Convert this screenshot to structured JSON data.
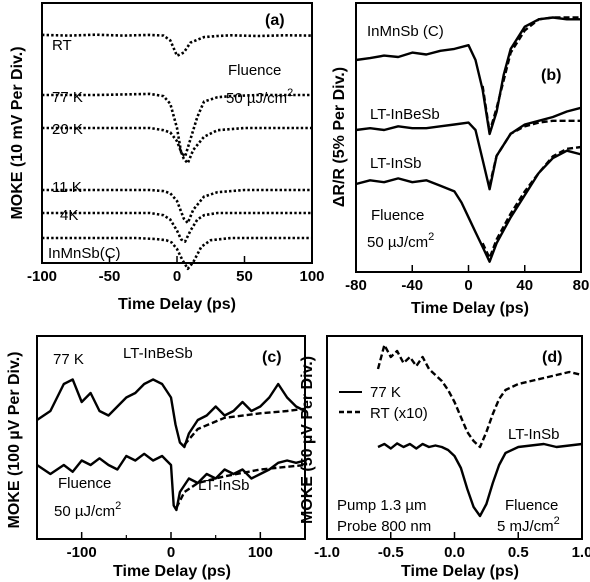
{
  "chart_data": [
    {
      "panel": "(a)",
      "type": "line",
      "xlabel": "Time Delay (ps)",
      "ylabel": "MOKE (10 mV Per Div.)",
      "xlim": [
        -100,
        100
      ],
      "xticks": [
        "-100",
        "-50",
        "0",
        "50",
        "100"
      ],
      "grid": false,
      "annotations": [
        "Fluence",
        "50 µJ/cm",
        "2"
      ],
      "series": [
        {
          "name": "RT",
          "style": "dotted",
          "x": [
            -100,
            -80,
            -60,
            -40,
            -20,
            -10,
            -5,
            0,
            5,
            10,
            20,
            30,
            40,
            60,
            80,
            100
          ],
          "y": [
            0.05,
            0.02,
            0.06,
            0.02,
            0.05,
            0.02,
            -0.2,
            -0.9,
            -0.75,
            -0.3,
            -0.05,
            0.0,
            0.03,
            0.0,
            0.03,
            0.02
          ]
        },
        {
          "name": "77 K",
          "style": "dotted",
          "x": [
            -100,
            -60,
            -20,
            -10,
            -5,
            0,
            3,
            6,
            10,
            15,
            20,
            30,
            40,
            60,
            100
          ],
          "y": [
            0.0,
            0.0,
            0.05,
            -0.05,
            -0.4,
            -1.5,
            -2.6,
            -2.8,
            -2.0,
            -1.0,
            -0.3,
            -0.1,
            -0.05,
            0.0,
            0.0
          ]
        },
        {
          "name": "20 K",
          "style": "dotted",
          "x": [
            -100,
            -60,
            -20,
            -10,
            -5,
            0,
            5,
            8,
            12,
            20,
            30,
            50,
            100
          ],
          "y": [
            0.0,
            0.0,
            0.0,
            -0.1,
            -0.2,
            -0.6,
            -1.4,
            -1.6,
            -1.0,
            -0.4,
            -0.1,
            0.0,
            0.0
          ]
        },
        {
          "name": "11 K",
          "style": "dotted",
          "x": [
            -100,
            -60,
            -20,
            -10,
            -5,
            0,
            5,
            8,
            12,
            20,
            30,
            50,
            100
          ],
          "y": [
            0.0,
            0.0,
            0.0,
            -0.05,
            -0.15,
            -0.5,
            -1.3,
            -1.5,
            -0.9,
            -0.3,
            -0.1,
            0.0,
            0.0
          ]
        },
        {
          "name": "4K",
          "style": "dotted",
          "x": [
            -100,
            -60,
            -20,
            -10,
            -5,
            0,
            3,
            6,
            10,
            15,
            20,
            30,
            50,
            100
          ],
          "y": [
            0.0,
            0.0,
            0.0,
            -0.1,
            -0.3,
            -0.8,
            -1.2,
            -1.3,
            -0.8,
            -0.3,
            -0.1,
            0.0,
            0.0,
            0.0
          ]
        },
        {
          "name": "InMnSb(C)",
          "style": "dotted",
          "x": [
            -100,
            -60,
            -30,
            -15,
            -8,
            -4,
            0,
            4,
            8,
            12,
            18,
            25,
            40,
            60,
            100
          ],
          "y": [
            0.0,
            0.0,
            0.0,
            -0.05,
            -0.1,
            -0.2,
            -0.5,
            -1.0,
            -1.4,
            -1.1,
            -0.4,
            -0.1,
            0.0,
            0.0,
            0.0
          ]
        }
      ]
    },
    {
      "panel": "(b)",
      "type": "line",
      "xlabel": "Time Delay (ps)",
      "ylabel": "ΔR/R (5% Per Div.)",
      "xlim": [
        -80,
        80
      ],
      "xticks": [
        "-80",
        "-40",
        "0",
        "40",
        "80"
      ],
      "grid": false,
      "annotations": [
        "Fluence",
        "50 µJ/cm",
        "2"
      ],
      "series": [
        {
          "name": "InMnSb (C)",
          "style": "solid",
          "x": [
            -80,
            -70,
            -60,
            -50,
            -40,
            -30,
            -20,
            -10,
            0,
            5,
            10,
            15,
            20,
            25,
            30,
            40,
            50,
            60,
            70,
            80
          ],
          "y": [
            0.0,
            0.05,
            0.12,
            0.08,
            0.2,
            0.15,
            0.25,
            0.3,
            0.4,
            0.0,
            -0.8,
            -2.0,
            -1.4,
            -0.4,
            0.3,
            0.9,
            1.1,
            1.15,
            1.1,
            1.1
          ]
        },
        {
          "name": "InMnSb (C) fit",
          "style": "dashed",
          "x": [
            10,
            15,
            20,
            30,
            40,
            50,
            60,
            70,
            80
          ],
          "y": [
            -0.7,
            -1.95,
            -1.3,
            0.2,
            0.8,
            1.1,
            1.15,
            1.15,
            1.15
          ]
        },
        {
          "name": "LT-InBeSb",
          "style": "solid",
          "x": [
            -80,
            -70,
            -60,
            -50,
            -40,
            -30,
            -20,
            -10,
            0,
            5,
            10,
            15,
            20,
            30,
            40,
            50,
            60,
            70,
            80
          ],
          "y": [
            0.0,
            0.05,
            0.0,
            0.1,
            0.05,
            0.05,
            0.1,
            0.15,
            0.2,
            0.0,
            -0.8,
            -1.6,
            -0.7,
            -0.1,
            0.15,
            0.25,
            0.35,
            0.5,
            0.6
          ]
        },
        {
          "name": "LT-InBeSb fit",
          "style": "dashed",
          "x": [
            15,
            20,
            30,
            40,
            50,
            60,
            70,
            80
          ],
          "y": [
            -1.5,
            -0.7,
            -0.1,
            0.1,
            0.2,
            0.25,
            0.25,
            0.25
          ]
        },
        {
          "name": "LT-InSb",
          "style": "solid",
          "x": [
            -80,
            -70,
            -60,
            -50,
            -40,
            -30,
            -20,
            -10,
            -5,
            0,
            5,
            10,
            15,
            20,
            30,
            40,
            50,
            60,
            70,
            80
          ],
          "y": [
            0.0,
            0.1,
            0.05,
            0.15,
            0.05,
            0.1,
            -0.05,
            -0.2,
            -0.5,
            -0.9,
            -1.3,
            -1.7,
            -2.1,
            -1.6,
            -0.9,
            -0.3,
            0.3,
            0.7,
            0.9,
            0.8
          ]
        },
        {
          "name": "LT-InSb fit",
          "style": "dashed",
          "x": [
            10,
            15,
            20,
            30,
            40,
            50,
            60,
            70,
            80
          ],
          "y": [
            -1.6,
            -2.0,
            -1.5,
            -0.8,
            -0.2,
            0.3,
            0.75,
            0.95,
            1.0
          ]
        }
      ]
    },
    {
      "panel": "(c)",
      "type": "line",
      "xlabel": "Time Delay (ps)",
      "ylabel": "MOKE (100 µV Per Div.)",
      "xlim": [
        -150,
        150
      ],
      "xticks": [
        "-100",
        "0",
        "100"
      ],
      "grid": false,
      "annotations": [
        "77 K",
        "Fluence",
        "50 µJ/cm",
        "2"
      ],
      "series": [
        {
          "name": "LT-InBeSb",
          "style": "solid",
          "x": [
            -150,
            -135,
            -120,
            -110,
            -100,
            -90,
            -80,
            -70,
            -60,
            -50,
            -40,
            -30,
            -20,
            -10,
            0,
            5,
            10,
            15,
            20,
            30,
            40,
            50,
            60,
            70,
            80,
            90,
            100,
            110,
            120,
            130,
            140,
            150
          ],
          "y": [
            0.0,
            0.2,
            0.8,
            0.9,
            0.4,
            0.6,
            0.2,
            0.1,
            0.3,
            0.5,
            0.6,
            0.8,
            0.9,
            0.8,
            0.5,
            -0.1,
            -0.5,
            -0.6,
            -0.3,
            0.0,
            0.1,
            0.3,
            0.1,
            0.2,
            0.4,
            0.2,
            0.3,
            0.5,
            0.8,
            0.5,
            0.3,
            0.2
          ]
        },
        {
          "name": "LT-InBeSb fit",
          "style": "dashed",
          "x": [
            15,
            30,
            60,
            100,
            130,
            150
          ],
          "y": [
            -0.55,
            -0.2,
            0.05,
            0.15,
            0.2,
            0.25
          ]
        },
        {
          "name": "LT-InSb",
          "style": "solid",
          "x": [
            -150,
            -135,
            -120,
            -110,
            -100,
            -90,
            -80,
            -70,
            -60,
            -50,
            -40,
            -30,
            -20,
            -10,
            -5,
            0,
            3,
            6,
            10,
            20,
            30,
            40,
            50,
            60,
            70,
            80,
            90,
            100,
            110,
            120,
            130,
            140,
            150
          ],
          "y": [
            0.0,
            -0.2,
            0.0,
            -0.15,
            0.1,
            0.0,
            0.15,
            0.0,
            -0.1,
            0.2,
            0.1,
            0.25,
            0.1,
            0.2,
            0.1,
            0.0,
            -0.9,
            -1.0,
            -0.6,
            -0.3,
            -0.4,
            -0.2,
            -0.3,
            -0.1,
            -0.2,
            -0.1,
            -0.3,
            -0.2,
            -0.1,
            0.05,
            0.1,
            0.05,
            0.1
          ]
        },
        {
          "name": "LT-InSb fit",
          "style": "dashed",
          "x": [
            6,
            15,
            30,
            60,
            100,
            150
          ],
          "y": [
            -0.95,
            -0.6,
            -0.4,
            -0.25,
            -0.1,
            0.0
          ]
        }
      ]
    },
    {
      "panel": "(d)",
      "type": "line",
      "xlabel": "Time Delay (ps)",
      "ylabel": "MOKE (50 µV Per Div.)",
      "xlim": [
        -1.0,
        1.0
      ],
      "xticks": [
        "-1.0",
        "-0.5",
        "0.0",
        "0.5",
        "1.0"
      ],
      "grid": false,
      "annotations": [
        "LT-InSb",
        "Pump 1.3 µm",
        "Probe 800 nm",
        "Fluence",
        "5 mJ/cm",
        "2"
      ],
      "legend": [
        "77 K",
        "RT (x10)"
      ],
      "series": [
        {
          "name": "77 K",
          "style": "solid",
          "x": [
            -0.6,
            -0.55,
            -0.5,
            -0.45,
            -0.4,
            -0.35,
            -0.3,
            -0.25,
            -0.2,
            -0.15,
            -0.1,
            -0.05,
            0.0,
            0.05,
            0.1,
            0.15,
            0.2,
            0.25,
            0.3,
            0.35,
            0.4,
            0.5,
            0.6,
            0.7,
            0.8,
            0.9,
            1.0
          ],
          "y": [
            0.0,
            0.1,
            -0.05,
            0.12,
            0.0,
            0.1,
            -0.05,
            0.1,
            0.0,
            0.05,
            0.0,
            -0.1,
            -0.3,
            -0.7,
            -1.4,
            -2.0,
            -2.3,
            -1.9,
            -1.2,
            -0.6,
            -0.2,
            0.0,
            0.05,
            0.1,
            0.0,
            0.05,
            0.1
          ]
        },
        {
          "name": "RT (x10)",
          "style": "dashed",
          "x": [
            -0.6,
            -0.55,
            -0.5,
            -0.45,
            -0.4,
            -0.35,
            -0.3,
            -0.25,
            -0.2,
            -0.15,
            -0.1,
            -0.05,
            0.0,
            0.05,
            0.1,
            0.15,
            0.2,
            0.25,
            0.3,
            0.35,
            0.4,
            0.5,
            0.6,
            0.7,
            0.8,
            0.9,
            1.0
          ],
          "y": [
            2.6,
            3.4,
            3.0,
            3.2,
            2.8,
            3.0,
            2.7,
            3.0,
            2.6,
            2.4,
            2.2,
            1.9,
            1.5,
            1.0,
            0.5,
            0.2,
            0.0,
            0.5,
            1.1,
            1.6,
            1.9,
            2.1,
            2.2,
            2.3,
            2.4,
            2.5,
            2.4
          ]
        }
      ]
    }
  ],
  "labels": {
    "a": {
      "panel": "(a)",
      "rt": "RT",
      "t77": "77 K",
      "t20": "20 K",
      "t11": "11 K",
      "t4": "4K",
      "sample": "InMnSb(C)",
      "fluence": "Fluence",
      "fluence_val": "50 µJ/cm",
      "sup": "2",
      "ylabel": "MOKE (10 mV Per Div.)",
      "xlabel": "Time Delay (ps)"
    },
    "b": {
      "panel": "(b)",
      "s1": "InMnSb (C)",
      "s2": "LT-InBeSb",
      "s3": "LT-InSb",
      "fluence": "Fluence",
      "fluence_val": "50 µJ/cm",
      "sup": "2",
      "ylabel": "ΔR/R (5% Per Div.)",
      "xlabel": "Time Delay (ps)"
    },
    "c": {
      "panel": "(c)",
      "t77": "77 K",
      "s1": "LT-InBeSb",
      "s2": "LT-InSb",
      "fluence": "Fluence",
      "fluence_val": "50 µJ/cm",
      "sup": "2",
      "ylabel": "MOKE (100 µV Per Div.)",
      "xlabel": "Time Delay (ps)"
    },
    "d": {
      "panel": "(d)",
      "leg1": "77 K",
      "leg2": "RT (x10)",
      "sample": "LT-InSb",
      "pump": "Pump 1.3 µm",
      "probe": "Probe 800 nm",
      "fluence": "Fluence",
      "fluence_val": "5 mJ/cm",
      "sup": "2",
      "ylabel": "MOKE (50 µV Per Div.)",
      "xlabel": "Time Delay (ps)"
    }
  }
}
